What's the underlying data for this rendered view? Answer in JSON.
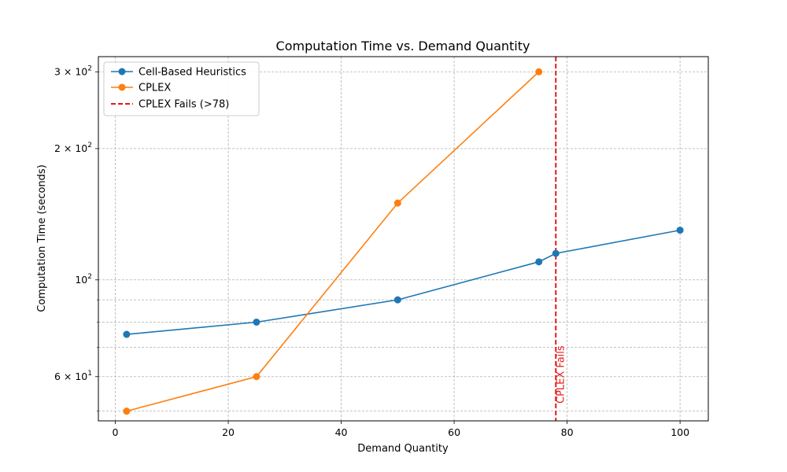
{
  "chart_data": {
    "type": "line",
    "title": "Computation Time vs. Demand Quantity",
    "xlabel": "Demand Quantity",
    "ylabel": "Computation Time (seconds)",
    "xlim": [
      -3,
      105
    ],
    "ylim": [
      47.5,
      325
    ],
    "yscale": "log",
    "grid": true,
    "legend_position": "top-left",
    "x_ticks": [
      0,
      20,
      40,
      60,
      80,
      100
    ],
    "x_tick_labels": [
      "0",
      "20",
      "40",
      "60",
      "80",
      "100"
    ],
    "y_major_ticks": [
      60,
      100,
      200,
      300
    ],
    "y_tick_labels": {
      "base": "10",
      "mult_60": "6 × ",
      "mult_200": "2 × ",
      "mult_300": "3 × ",
      "exp_1": "1",
      "exp_2": "2"
    },
    "y_minor_ticks": [
      50,
      70,
      80,
      90
    ],
    "series": [
      {
        "name": "Cell-Based Heuristics",
        "color": "#1f77b4",
        "x": [
          2,
          25,
          50,
          75,
          78,
          100
        ],
        "y": [
          75,
          80,
          90,
          110,
          115,
          130
        ]
      },
      {
        "name": "CPLEX",
        "color": "#ff7f0e",
        "x": [
          2,
          25,
          50,
          75
        ],
        "y": [
          50,
          60,
          150,
          300
        ]
      }
    ],
    "vline": {
      "x": 78,
      "label": "CPLEX Fails (>78)",
      "color": "#e41a1c",
      "annotation": "CPLEX Fails"
    }
  }
}
